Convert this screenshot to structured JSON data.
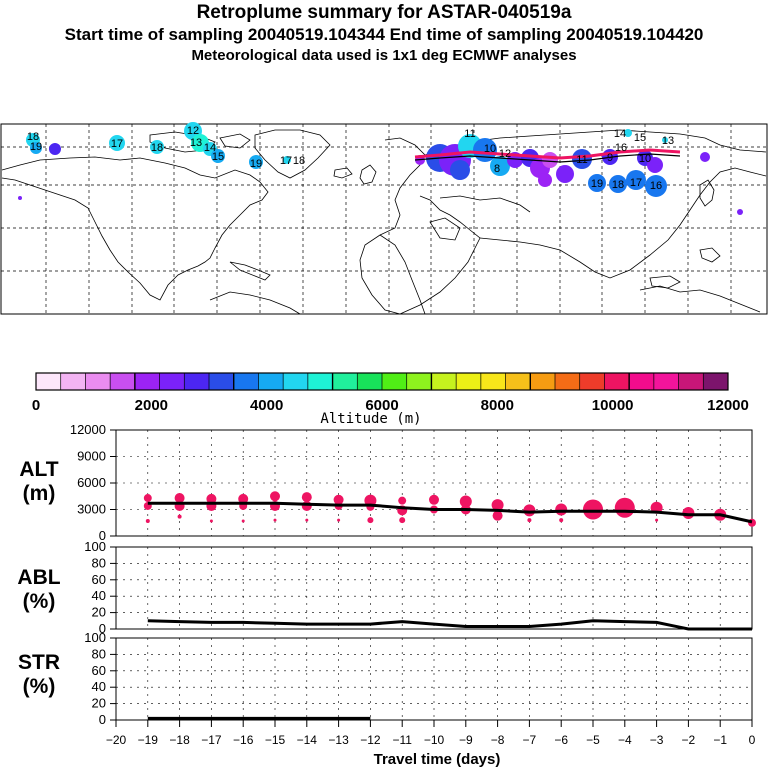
{
  "title": {
    "line1": "Retroplume summary for ASTAR-040519a",
    "line2": "Start time of sampling 20040519.104344     End time of sampling 20040519.104420",
    "line3": "Meteorological data used is 1x1 deg ECMWF analyses"
  },
  "map": {
    "labels": [
      {
        "t": "18",
        "x": 33,
        "y": 136
      },
      {
        "t": "19",
        "x": 36,
        "y": 146
      },
      {
        "t": "17",
        "x": 117,
        "y": 143
      },
      {
        "t": "18",
        "x": 157,
        "y": 147
      },
      {
        "t": "12",
        "x": 193,
        "y": 130
      },
      {
        "t": "13",
        "x": 196,
        "y": 142
      },
      {
        "t": "14",
        "x": 210,
        "y": 147
      },
      {
        "t": "15",
        "x": 218,
        "y": 156
      },
      {
        "t": "19",
        "x": 256,
        "y": 163
      },
      {
        "t": "17",
        "x": 286,
        "y": 160
      },
      {
        "t": "18",
        "x": 299,
        "y": 160
      },
      {
        "t": "11",
        "x": 470,
        "y": 133
      },
      {
        "t": "10",
        "x": 490,
        "y": 148
      },
      {
        "t": "12",
        "x": 505,
        "y": 153
      },
      {
        "t": "8",
        "x": 497,
        "y": 168
      },
      {
        "t": "11",
        "x": 582,
        "y": 159
      },
      {
        "t": "9",
        "x": 610,
        "y": 157
      },
      {
        "t": "10",
        "x": 645,
        "y": 158
      },
      {
        "t": "16",
        "x": 621,
        "y": 147
      },
      {
        "t": "13",
        "x": 668,
        "y": 140
      },
      {
        "t": "19",
        "x": 597,
        "y": 183
      },
      {
        "t": "18",
        "x": 618,
        "y": 184
      },
      {
        "t": "17",
        "x": 636,
        "y": 182
      },
      {
        "t": "16",
        "x": 656,
        "y": 185
      },
      {
        "t": "14",
        "x": 620,
        "y": 133
      },
      {
        "t": "15",
        "x": 640,
        "y": 137
      }
    ]
  },
  "colorbar": {
    "colors": [
      "#fde7fb",
      "#f3b4f3",
      "#ea8cf0",
      "#c94ff0",
      "#9c23f5",
      "#7b22f9",
      "#4c26f2",
      "#2a4de8",
      "#1877ef",
      "#16aaf2",
      "#22d6f0",
      "#1ef2d6",
      "#20ef9c",
      "#18e25a",
      "#50ee16",
      "#8ef21e",
      "#c6f21e",
      "#ecf016",
      "#f8e61a",
      "#f6c01a",
      "#f69c12",
      "#f46c16",
      "#ee3c2a",
      "#ee1462",
      "#f20c8c",
      "#f3149b",
      "#c81678",
      "#7c146c"
    ],
    "tick_labels": [
      "0",
      "2000",
      "4000",
      "6000",
      "8000",
      "10000",
      "12000"
    ],
    "label": "Altitude (m)"
  },
  "chart_data": [
    {
      "type": "line",
      "panel": "ALT",
      "ylabel": "ALT\n(m)",
      "ylabel_line1": "ALT",
      "ylabel_line2": "(m)",
      "ylim": [
        0,
        12000
      ],
      "yticks": [
        "12000",
        "9000",
        "6000",
        "3000",
        "0"
      ],
      "x": [
        -19,
        -18,
        -17,
        -16,
        -15,
        -14,
        -13,
        -12,
        -11,
        -10,
        -9,
        -8,
        -7,
        -6,
        -5,
        -4,
        -3,
        -2,
        -1,
        0
      ],
      "values": [
        3700,
        3700,
        3700,
        3700,
        3700,
        3600,
        3500,
        3500,
        3200,
        3000,
        3000,
        2900,
        2700,
        2800,
        2800,
        2800,
        2700,
        2400,
        2400,
        1600
      ],
      "bubbles": [
        {
          "x": -19,
          "y": 4300,
          "s": 4
        },
        {
          "x": -19,
          "y": 3400,
          "s": 4
        },
        {
          "x": -19,
          "y": 1700,
          "s": 2
        },
        {
          "x": -18,
          "y": 4300,
          "s": 5
        },
        {
          "x": -18,
          "y": 3400,
          "s": 5
        },
        {
          "x": -18,
          "y": 2200,
          "s": 2
        },
        {
          "x": -17,
          "y": 4200,
          "s": 5
        },
        {
          "x": -17,
          "y": 3400,
          "s": 5
        },
        {
          "x": -17,
          "y": 1700,
          "s": 1.5
        },
        {
          "x": -16,
          "y": 4200,
          "s": 5
        },
        {
          "x": -16,
          "y": 3400,
          "s": 4
        },
        {
          "x": -16,
          "y": 1700,
          "s": 1.5
        },
        {
          "x": -15,
          "y": 4500,
          "s": 5
        },
        {
          "x": -15,
          "y": 3400,
          "s": 5
        },
        {
          "x": -15,
          "y": 1800,
          "s": 1.5
        },
        {
          "x": -14,
          "y": 4400,
          "s": 5
        },
        {
          "x": -14,
          "y": 3400,
          "s": 5
        },
        {
          "x": -14,
          "y": 1800,
          "s": 1.5
        },
        {
          "x": -13,
          "y": 4100,
          "s": 5
        },
        {
          "x": -13,
          "y": 3400,
          "s": 4
        },
        {
          "x": -13,
          "y": 1800,
          "s": 1.5
        },
        {
          "x": -12,
          "y": 4000,
          "s": 6
        },
        {
          "x": -12,
          "y": 3300,
          "s": 4
        },
        {
          "x": -12,
          "y": 1800,
          "s": 3
        },
        {
          "x": -11,
          "y": 4000,
          "s": 4
        },
        {
          "x": -11,
          "y": 2900,
          "s": 5
        },
        {
          "x": -11,
          "y": 1800,
          "s": 3
        },
        {
          "x": -10,
          "y": 4100,
          "s": 5
        },
        {
          "x": -10,
          "y": 3000,
          "s": 4
        },
        {
          "x": -9,
          "y": 3900,
          "s": 6
        },
        {
          "x": -9,
          "y": 3000,
          "s": 5
        },
        {
          "x": -8,
          "y": 3500,
          "s": 6
        },
        {
          "x": -8,
          "y": 2300,
          "s": 5
        },
        {
          "x": -7,
          "y": 2900,
          "s": 6
        },
        {
          "x": -7,
          "y": 1800,
          "s": 2
        },
        {
          "x": -6,
          "y": 3000,
          "s": 6
        },
        {
          "x": -6,
          "y": 1800,
          "s": 2
        },
        {
          "x": -5,
          "y": 3000,
          "s": 10
        },
        {
          "x": -4,
          "y": 3200,
          "s": 10
        },
        {
          "x": -3,
          "y": 3200,
          "s": 6
        },
        {
          "x": -3,
          "y": 1800,
          "s": 1.5
        },
        {
          "x": -2,
          "y": 2600,
          "s": 6
        },
        {
          "x": -1,
          "y": 2400,
          "s": 6
        },
        {
          "x": 0,
          "y": 1500,
          "s": 4
        }
      ]
    },
    {
      "type": "line",
      "panel": "ABL",
      "ylabel_line1": "ABL",
      "ylabel_line2": "(%)",
      "ylim": [
        0,
        100
      ],
      "yticks": [
        "100",
        "80",
        "60",
        "40",
        "20",
        "0"
      ],
      "x": [
        -19,
        -18,
        -17,
        -16,
        -15,
        -14,
        -13,
        -12,
        -11,
        -10,
        -9,
        -8,
        -7,
        -6,
        -5,
        -4,
        -3,
        -2.5,
        -2,
        -1,
        0
      ],
      "values": [
        10,
        9,
        8,
        8,
        7,
        6,
        6,
        6,
        9,
        6,
        3,
        3,
        3,
        6,
        10,
        9,
        8,
        4,
        0,
        0,
        0
      ]
    },
    {
      "type": "line",
      "panel": "STR",
      "ylabel_line1": "STR",
      "ylabel_line2": "(%)",
      "ylim": [
        0,
        100
      ],
      "yticks": [
        "100",
        "80",
        "60",
        "40",
        "20",
        "0"
      ],
      "x": [
        -19,
        -18,
        -17,
        -16,
        -15,
        -14,
        -13,
        -12
      ],
      "values": [
        2,
        2,
        2,
        2,
        2,
        2,
        2,
        2
      ]
    }
  ],
  "xaxis": {
    "ticks": [
      "−20",
      "−19",
      "−18",
      "−17",
      "−16",
      "−15",
      "−14",
      "−13",
      "−12",
      "−11",
      "−10",
      "−9",
      "−8",
      "−7",
      "−6",
      "−5",
      "−4",
      "−3",
      "−2",
      "−1",
      "0"
    ],
    "label": "Travel time (days)"
  }
}
